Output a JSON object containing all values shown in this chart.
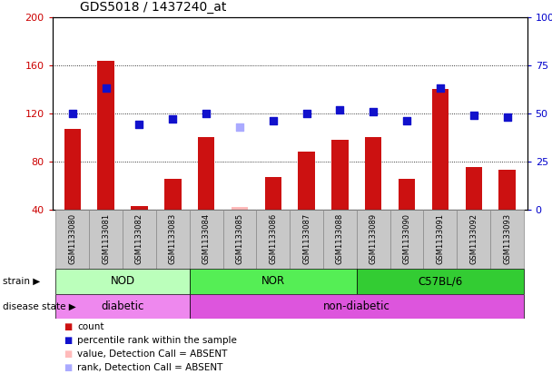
{
  "title": "GDS5018 / 1437240_at",
  "samples": [
    "GSM1133080",
    "GSM1133081",
    "GSM1133082",
    "GSM1133083",
    "GSM1133084",
    "GSM1133085",
    "GSM1133086",
    "GSM1133087",
    "GSM1133088",
    "GSM1133089",
    "GSM1133090",
    "GSM1133091",
    "GSM1133092",
    "GSM1133093"
  ],
  "counts": [
    107,
    164,
    43,
    65,
    100,
    42,
    67,
    88,
    98,
    100,
    65,
    140,
    75,
    73
  ],
  "absent_count": [
    null,
    null,
    null,
    null,
    null,
    42,
    null,
    null,
    null,
    null,
    null,
    null,
    null,
    null
  ],
  "pct_ranks": [
    50,
    63,
    44,
    47,
    50,
    null,
    46,
    50,
    52,
    51,
    46,
    63,
    49,
    48
  ],
  "absent_rank": [
    null,
    null,
    null,
    null,
    null,
    43,
    null,
    null,
    null,
    null,
    null,
    null,
    null,
    null
  ],
  "ylim_left": [
    40,
    200
  ],
  "ylim_right": [
    0,
    100
  ],
  "yticks_left": [
    40,
    80,
    120,
    160,
    200
  ],
  "yticks_right": [
    0,
    25,
    50,
    75,
    100
  ],
  "ytick_labels_left": [
    "40",
    "80",
    "120",
    "160",
    "200"
  ],
  "ytick_labels_right": [
    "0",
    "25",
    "50",
    "75",
    "100%"
  ],
  "strain_groups": [
    {
      "label": "NOD",
      "start": 0,
      "end": 3,
      "color": "#bbffbb"
    },
    {
      "label": "NOR",
      "start": 4,
      "end": 8,
      "color": "#55ee55"
    },
    {
      "label": "C57BL/6",
      "start": 9,
      "end": 13,
      "color": "#33cc33"
    }
  ],
  "disease_groups": [
    {
      "label": "diabetic",
      "start": 0,
      "end": 3,
      "color": "#ee88ee"
    },
    {
      "label": "non-diabetic",
      "start": 4,
      "end": 13,
      "color": "#dd55dd"
    }
  ],
  "bar_color": "#cc1111",
  "dot_color": "#1111cc",
  "absent_bar_color": "#ffbbbb",
  "absent_dot_color": "#aaaaff",
  "bar_width": 0.5,
  "dot_size": 35,
  "bg_color": "#ffffff",
  "plot_bg": "#ffffff",
  "tick_label_color_left": "#cc0000",
  "tick_label_color_right": "#0000cc",
  "title_fontsize": 10,
  "label_fontsize": 8,
  "legend_items": [
    {
      "color": "#cc1111",
      "label": "count"
    },
    {
      "color": "#1111cc",
      "label": "percentile rank within the sample"
    },
    {
      "color": "#ffbbbb",
      "label": "value, Detection Call = ABSENT"
    },
    {
      "color": "#aaaaff",
      "label": "rank, Detection Call = ABSENT"
    }
  ]
}
